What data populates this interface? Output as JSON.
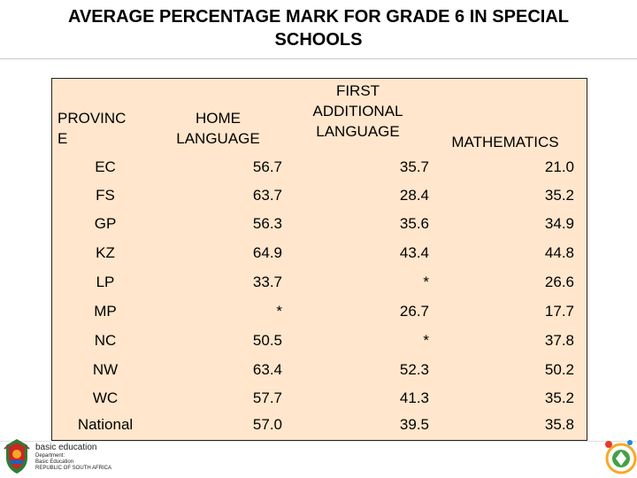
{
  "title": {
    "line1": "AVERAGE PERCENTAGE MARK FOR GRADE 6 IN SPECIAL",
    "line2": "SCHOOLS"
  },
  "table": {
    "headers": {
      "province_l1": "PROVINC",
      "province_l2": "E",
      "home_l1": "HOME",
      "home_l2": "LANGUAGE",
      "fal_l1": "FIRST",
      "fal_l2": "ADDITIONAL",
      "fal_l3": "LANGUAGE",
      "math": "MATHEMATICS"
    },
    "rows": [
      {
        "province": "EC",
        "home": "56.7",
        "fal": "35.7",
        "math": "21.0"
      },
      {
        "province": "FS",
        "home": "63.7",
        "fal": "28.4",
        "math": "35.2"
      },
      {
        "province": "GP",
        "home": "56.3",
        "fal": "35.6",
        "math": "34.9"
      },
      {
        "province": "KZ",
        "home": "64.9",
        "fal": "43.4",
        "math": "44.8"
      },
      {
        "province": "LP",
        "home": "33.7",
        "fal": "*",
        "math": "26.6"
      },
      {
        "province": "MP",
        "home": "*",
        "fal": "26.7",
        "math": "17.7"
      },
      {
        "province": "NC",
        "home": "50.5",
        "fal": "*",
        "math": "37.8"
      },
      {
        "province": "NW",
        "home": "63.4",
        "fal": "52.3",
        "math": "50.2"
      },
      {
        "province": "WC",
        "home": "57.7",
        "fal": "41.3",
        "math": "35.2"
      },
      {
        "province": "National",
        "home": "57.0",
        "fal": "39.5",
        "math": "35.8"
      }
    ],
    "background": "#ffe6cc"
  },
  "footer": {
    "brand_main": "basic education",
    "brand_sub1": "Department:",
    "brand_sub2": "Basic Education",
    "brand_sub3": "REPUBLIC OF SOUTH AFRICA",
    "logo_icon": "coat-of-arms-icon",
    "corner_icon": "anniversary-emblem-icon"
  }
}
